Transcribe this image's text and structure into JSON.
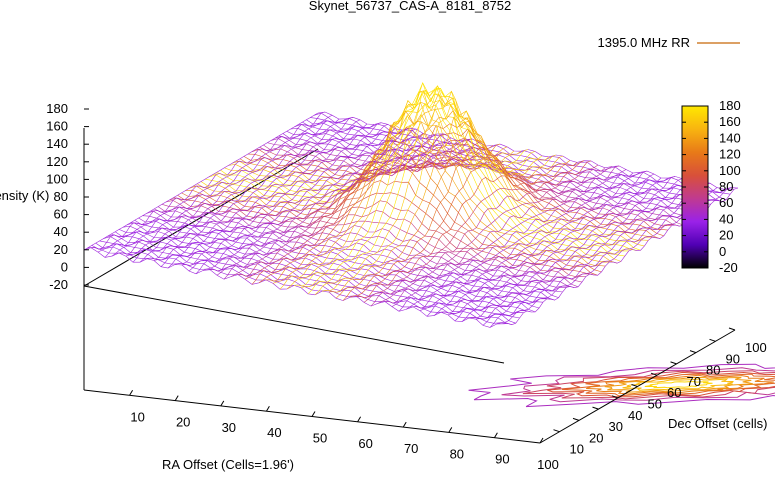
{
  "chart_data": {
    "type": "surface3d",
    "title": "Skynet_56737_CAS-A_8181_8752",
    "legend": {
      "label": "1395.0 MHz RR",
      "placement": "top-right"
    },
    "xlabel": "RA Offset (Cells=1.96')",
    "ylabel": "Dec Offset (cells)",
    "zlabel": "Intensity (K)",
    "x_ticks": [
      "10",
      "20",
      "30",
      "40",
      "50",
      "60",
      "70",
      "80",
      "90",
      "100"
    ],
    "y_ticks": [
      "10",
      "20",
      "30",
      "40",
      "50",
      "60",
      "70",
      "80",
      "90",
      "100"
    ],
    "z_ticks": [
      "180",
      "160",
      "140",
      "120",
      "100",
      "80",
      "60",
      "40",
      "20",
      "0",
      "-20"
    ],
    "colorbar": {
      "ticks": [
        "180",
        "160",
        "140",
        "120",
        "100",
        "80",
        "60",
        "40",
        "20",
        "0",
        "-20"
      ],
      "range": [
        -20,
        180
      ],
      "colors": [
        "#000000",
        "#5000b4",
        "#9a22e8",
        "#c03a90",
        "#d8503a",
        "#e87a18",
        "#f8b410",
        "#ffe800"
      ]
    },
    "xlim": [
      0,
      100
    ],
    "ylim": [
      0,
      100
    ],
    "zlim": [
      -20,
      180
    ],
    "surface": {
      "baseline_k": 40,
      "peak_k": 178,
      "peak_center": {
        "x": 52,
        "y": 55
      },
      "contours_at_base": true
    }
  }
}
